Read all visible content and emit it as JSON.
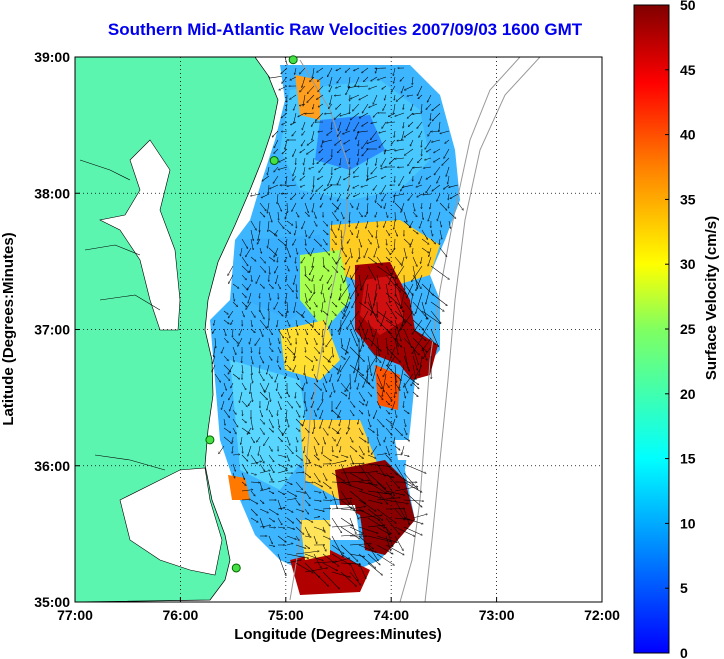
{
  "title": "Southern Mid-Atlantic Raw Velocities 2007/09/03 1600 GMT",
  "x_axis": {
    "label": "Longitude (Degrees:Minutes)",
    "ticks": [
      "77:00",
      "76:00",
      "75:00",
      "74:00",
      "73:00",
      "72:00"
    ]
  },
  "y_axis": {
    "label": "Latitude (Degrees:Minutes)",
    "ticks": [
      "39:00",
      "38:00",
      "37:00",
      "36:00",
      "35:00"
    ]
  },
  "colorbar": {
    "label": "Surface Velocity (cm/s)",
    "ticks": [
      "50",
      "45",
      "40",
      "35",
      "30",
      "25",
      "20",
      "15",
      "10",
      "5",
      "0"
    ],
    "min": 0,
    "max": 50,
    "colormap": "jet"
  },
  "map_data": {
    "lon_range": [
      -77,
      -72
    ],
    "lat_range": [
      35,
      39
    ],
    "grid": true,
    "land_color": "#5cf5b0",
    "radar_sites": [
      {
        "lon": -74.93,
        "lat": 38.98
      },
      {
        "lon": -75.11,
        "lat": 38.24
      },
      {
        "lon": -75.72,
        "lat": 36.19
      },
      {
        "lon": -75.47,
        "lat": 35.25
      }
    ]
  }
}
